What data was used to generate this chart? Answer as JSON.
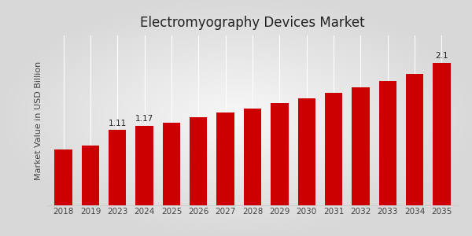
{
  "title": "Electromyography Devices Market",
  "ylabel": "Market Value in USD Billion",
  "categories": [
    "2018",
    "2019",
    "2023",
    "2024",
    "2025",
    "2026",
    "2027",
    "2028",
    "2029",
    "2030",
    "2031",
    "2032",
    "2033",
    "2034",
    "2035"
  ],
  "values": [
    0.82,
    0.88,
    1.11,
    1.17,
    1.22,
    1.3,
    1.36,
    1.42,
    1.5,
    1.57,
    1.65,
    1.74,
    1.83,
    1.93,
    2.1
  ],
  "bar_color": "#CC0000",
  "bar_annotations": {
    "2023": "1.11",
    "2024": "1.17",
    "2035": "2.1"
  },
  "background_color": "#e0e0e0",
  "title_fontsize": 12,
  "ylabel_fontsize": 8,
  "tick_fontsize": 7.5,
  "annotation_fontsize": 7.5,
  "ylim": [
    0,
    2.5
  ],
  "bar_width": 0.65,
  "bottom_stripe_color": "#CC0000",
  "grid_color": "#ffffff",
  "spine_color": "#cccccc"
}
